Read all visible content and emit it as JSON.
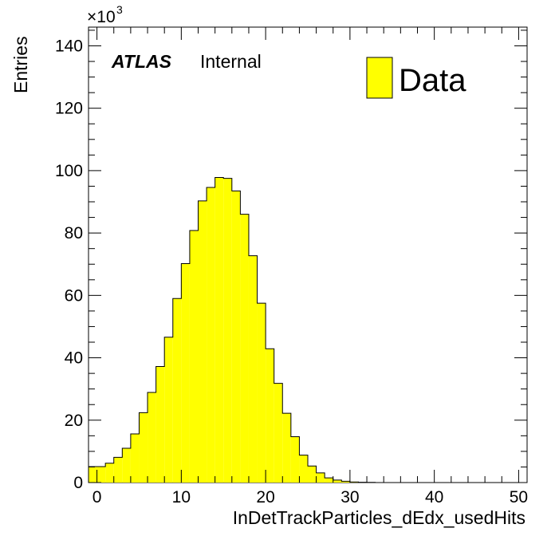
{
  "chart_data": {
    "type": "bar",
    "xlabel": "InDetTrackParticles_dEdx_usedHits",
    "ylabel": "Entries",
    "y_multiplier": {
      "base": "×10",
      "exponent": "3"
    },
    "xlim": [
      -1,
      51
    ],
    "ylim": [
      0,
      146
    ],
    "x_ticks": [
      "0",
      "10",
      "20",
      "30",
      "40",
      "50"
    ],
    "y_ticks": [
      "0",
      "20",
      "40",
      "60",
      "80",
      "100",
      "120",
      "140"
    ],
    "bin_edges": [
      -1,
      0,
      1,
      2,
      3,
      4,
      5,
      6,
      7,
      8,
      9,
      10,
      11,
      12,
      13,
      14,
      15,
      16,
      17,
      18,
      19,
      20,
      21,
      22,
      23,
      24,
      25,
      26,
      27,
      28,
      29,
      30,
      31,
      32,
      33,
      34,
      35,
      36,
      37,
      38,
      39,
      40,
      41,
      42,
      43,
      44,
      45,
      46,
      47,
      48,
      49,
      50,
      51
    ],
    "series": [
      {
        "name": "Data",
        "color": "#ffff00",
        "values": [
          5.1,
          5.1,
          6.2,
          8.1,
          11.0,
          15.6,
          22.4,
          28.9,
          37.2,
          46.6,
          59.0,
          70.2,
          80.8,
          90.3,
          94.6,
          97.8,
          97.5,
          93.5,
          86.0,
          72.7,
          57.5,
          42.9,
          31.8,
          22.2,
          14.7,
          8.8,
          5.3,
          3.1,
          1.5,
          0.8,
          0.4,
          0.2,
          0.1,
          0.05,
          0.0,
          0.0,
          0.0,
          0.0,
          0.0,
          0.0,
          0.0,
          0.0,
          0.0,
          0.0,
          0.0,
          0.0,
          0.0,
          0.0,
          0.0,
          0.0,
          0.0,
          0.0
        ]
      }
    ],
    "grid": false,
    "legend_position": "top-right",
    "annotation": {
      "bold": "ATLAS",
      "text": "Internal"
    }
  }
}
